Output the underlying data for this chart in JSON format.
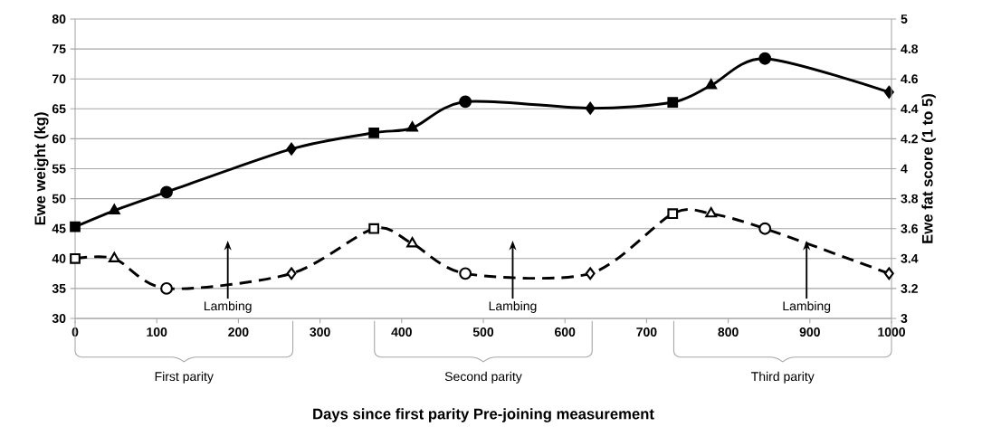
{
  "chart_data": {
    "type": "line",
    "xlabel": "Days since first parity Pre-joining measurement",
    "ylabel": "Ewe weight (kg)",
    "y2label": "Ewe fat score (1 to 5)",
    "xlim": [
      0,
      1000
    ],
    "xticks": [
      0,
      100,
      200,
      300,
      400,
      500,
      600,
      700,
      800,
      900,
      1000
    ],
    "ylim": [
      30,
      80
    ],
    "yticks": [
      30,
      35,
      40,
      45,
      50,
      55,
      60,
      65,
      70,
      75,
      80
    ],
    "y2lim": [
      3,
      5
    ],
    "y2ticks": [
      3,
      3.2,
      3.4,
      3.6,
      3.8,
      4,
      4.2,
      4.4,
      4.6,
      4.8,
      5
    ],
    "grid": "y",
    "series": [
      {
        "color": "#000000",
        "axis": "y",
        "line_style": "solid",
        "x": [
          0,
          48,
          112,
          265,
          366,
          413,
          478,
          631,
          732,
          779,
          845,
          997
        ],
        "values": [
          45.3,
          48,
          51.1,
          58.3,
          61,
          61.8,
          66.2,
          65.1,
          66.1,
          68.9,
          73.4,
          67.8
        ],
        "marker": [
          "square",
          "triangle",
          "circle",
          "diamond",
          "square",
          "triangle",
          "circle",
          "diamond",
          "square",
          "triangle",
          "circle",
          "diamond"
        ]
      },
      {
        "color": "#000000",
        "axis": "y2",
        "line_style": "dashed",
        "x": [
          0,
          48,
          112,
          265,
          366,
          413,
          478,
          631,
          732,
          779,
          845,
          997
        ],
        "values": [
          3.4,
          3.4,
          3.2,
          3.3,
          3.6,
          3.5,
          3.3,
          3.3,
          3.7,
          3.7,
          3.6,
          3.3
        ],
        "marker": [
          "square",
          "triangle",
          "circle",
          "diamond",
          "square",
          "triangle",
          "circle",
          "diamond",
          "square",
          "triangle",
          "circle",
          "diamond"
        ]
      }
    ],
    "ref_lines": [
      {
        "axis": "x",
        "value": 187,
        "label": "Lambing"
      },
      {
        "axis": "x",
        "value": 536,
        "label": "Lambing"
      },
      {
        "axis": "x",
        "value": 896,
        "label": "Lambing"
      }
    ],
    "annotations": [
      "First parity",
      "Second parity",
      "Third parity"
    ]
  }
}
